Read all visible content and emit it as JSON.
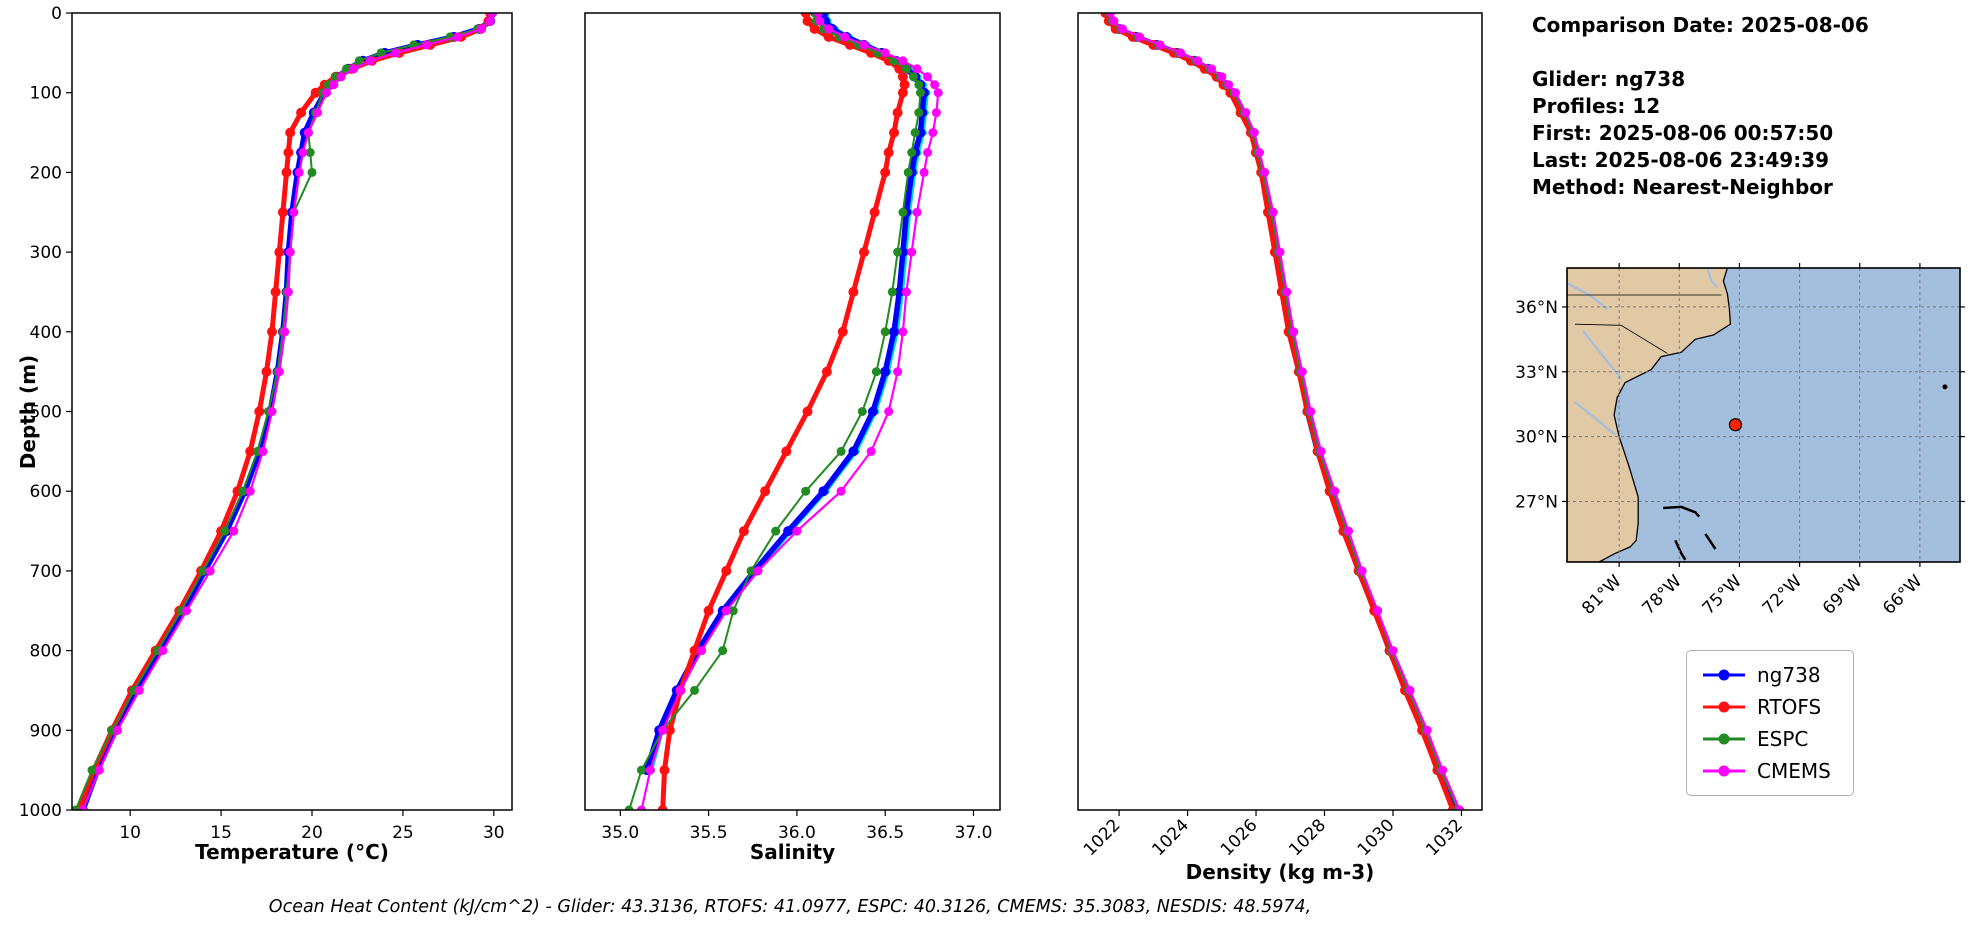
{
  "info_panel": {
    "lines": [
      "Comparison Date: 2025-08-06",
      "Glider: ng738",
      "Profiles: 12",
      "First: 2025-08-06 00:57:50",
      "Last: 2025-08-06 23:49:39",
      "Method: Nearest-Neighbor"
    ]
  },
  "ylabel": "Depth (m)",
  "footer": {
    "text": "Ocean Heat Content (kJ/cm^2) - Glider: 43.3136,  RTOFS: 41.0977,  ESPC: 40.3126,  CMEMS: 35.3083,  NESDIS: 48.5974,"
  },
  "legend": {
    "items": [
      {
        "label": "ng738",
        "color": "#0000ff"
      },
      {
        "label": "RTOFS",
        "color": "#ff1111"
      },
      {
        "label": "ESPC",
        "color": "#228b22"
      },
      {
        "label": "CMEMS",
        "color": "#ff00ff"
      }
    ]
  },
  "chart_data": [
    {
      "type": "line",
      "name": "temperature-profile",
      "xlabel": "Temperature (°C)",
      "ylabel": "Depth (m)",
      "xlim": [
        6.8,
        31.0
      ],
      "xticks": [
        10,
        15,
        20,
        25,
        30
      ],
      "xtick_labels": [
        "10",
        "15",
        "20",
        "25",
        "30"
      ],
      "xtick_rotation": 0,
      "ylim": [
        1000,
        0
      ],
      "yticks": [
        0,
        100,
        200,
        300,
        400,
        500,
        600,
        700,
        800,
        900,
        1000
      ],
      "depths": [
        0,
        10,
        20,
        30,
        40,
        50,
        60,
        70,
        80,
        90,
        100,
        125,
        150,
        175,
        200,
        250,
        300,
        350,
        400,
        450,
        500,
        550,
        600,
        650,
        700,
        750,
        800,
        850,
        900,
        950,
        1000
      ],
      "series": [
        {
          "name": "ng738 (all profiles)",
          "color": "#00dcdc",
          "width": 2.5,
          "marker_r": 3,
          "legend": false,
          "values": [
            30.0,
            29.9,
            29.4,
            28.1,
            26.2,
            24.4,
            23.1,
            22.2,
            21.6,
            21.1,
            20.8,
            20.2,
            19.7,
            19.5,
            19.3,
            19.0,
            18.8,
            18.7,
            18.5,
            18.2,
            17.8,
            17.2,
            16.4,
            15.4,
            14.2,
            13.0,
            11.7,
            10.4,
            9.3,
            8.3,
            7.5
          ]
        },
        {
          "name": "ng738",
          "color": "#0000ff",
          "width": 5.5,
          "marker_r": 5,
          "legend": true,
          "values": [
            29.9,
            29.8,
            29.2,
            27.8,
            25.8,
            24.0,
            22.8,
            22.0,
            21.4,
            21.0,
            20.7,
            20.1,
            19.6,
            19.4,
            19.2,
            18.9,
            18.7,
            18.6,
            18.4,
            18.1,
            17.7,
            17.1,
            16.3,
            15.3,
            14.1,
            12.9,
            11.6,
            10.3,
            9.2,
            8.2,
            7.4
          ]
        },
        {
          "name": "RTOFS",
          "color": "#ff1111",
          "width": 5,
          "marker_r": 5,
          "legend": true,
          "values": [
            29.8,
            29.7,
            29.3,
            28.2,
            26.5,
            24.8,
            23.3,
            22.2,
            21.3,
            20.7,
            20.2,
            19.4,
            18.8,
            18.7,
            18.6,
            18.4,
            18.2,
            18.0,
            17.8,
            17.5,
            17.1,
            16.6,
            15.9,
            15.0,
            13.9,
            12.7,
            11.4,
            10.1,
            9.0,
            8.0,
            7.2
          ]
        },
        {
          "name": "ESPC",
          "color": "#228b22",
          "width": 2,
          "marker_r": 4.5,
          "legend": true,
          "values": [
            29.9,
            29.8,
            29.1,
            27.6,
            25.6,
            23.8,
            22.6,
            21.9,
            21.3,
            20.9,
            20.6,
            20.2,
            19.8,
            19.9,
            20.0,
            19.0,
            18.8,
            18.6,
            18.4,
            18.1,
            17.6,
            17.0,
            16.2,
            15.2,
            14.0,
            12.8,
            11.5,
            10.2,
            9.0,
            7.9,
            7.0
          ]
        },
        {
          "name": "CMEMS",
          "color": "#ff00ff",
          "width": 2.2,
          "marker_r": 4.5,
          "legend": true,
          "values": [
            29.9,
            29.8,
            29.3,
            28.0,
            26.3,
            24.6,
            23.2,
            22.3,
            21.6,
            21.2,
            20.8,
            20.3,
            19.8,
            19.5,
            19.3,
            19.0,
            18.8,
            18.7,
            18.5,
            18.2,
            17.8,
            17.3,
            16.6,
            15.7,
            14.4,
            13.1,
            11.8,
            10.5,
            9.3,
            8.3,
            7.4
          ]
        }
      ]
    },
    {
      "type": "line",
      "name": "salinity-profile",
      "xlabel": "Salinity",
      "ylabel": "Depth (m)",
      "xlim": [
        34.8,
        37.15
      ],
      "xticks": [
        35.0,
        35.5,
        36.0,
        36.5,
        37.0
      ],
      "xtick_labels": [
        "35.0",
        "35.5",
        "36.0",
        "36.5",
        "37.0"
      ],
      "xtick_rotation": 0,
      "ylim": [
        1000,
        0
      ],
      "depths": [
        0,
        10,
        20,
        30,
        40,
        50,
        60,
        70,
        80,
        90,
        100,
        125,
        150,
        175,
        200,
        250,
        300,
        350,
        400,
        450,
        500,
        550,
        600,
        650,
        700,
        750,
        800,
        850,
        900,
        950,
        1000
      ],
      "series": [
        {
          "name": "ng738 (all profiles)",
          "color": "#00dcdc",
          "width": 2.5,
          "marker_r": 3,
          "legend": false,
          "values": [
            36.17,
            36.18,
            36.22,
            36.3,
            36.4,
            36.5,
            36.58,
            36.64,
            36.69,
            36.72,
            36.74,
            36.73,
            36.72,
            36.69,
            36.67,
            36.64,
            36.62,
            36.6,
            36.57,
            36.52,
            36.45,
            36.34,
            36.17,
            35.97,
            35.78,
            35.6,
            35.46,
            35.34,
            35.24,
            35.18,
            null
          ]
        },
        {
          "name": "ng738",
          "color": "#0000ff",
          "width": 5.5,
          "marker_r": 5,
          "legend": true,
          "values": [
            36.15,
            36.16,
            36.2,
            36.28,
            36.38,
            36.48,
            36.56,
            36.62,
            36.67,
            36.7,
            36.72,
            36.71,
            36.7,
            36.67,
            36.65,
            36.62,
            36.6,
            36.58,
            36.55,
            36.5,
            36.43,
            36.32,
            36.15,
            35.95,
            35.76,
            35.58,
            35.44,
            35.32,
            35.22,
            35.15,
            null
          ]
        },
        {
          "name": "RTOFS",
          "color": "#ff1111",
          "width": 5,
          "marker_r": 5,
          "legend": true,
          "values": [
            36.05,
            36.06,
            36.1,
            36.18,
            36.3,
            36.42,
            36.52,
            36.58,
            36.6,
            36.61,
            36.6,
            36.57,
            36.55,
            36.52,
            36.5,
            36.44,
            36.38,
            36.32,
            36.26,
            36.17,
            36.06,
            35.94,
            35.82,
            35.7,
            35.6,
            35.5,
            35.42,
            35.34,
            35.28,
            35.25,
            35.24
          ]
        },
        {
          "name": "ESPC",
          "color": "#228b22",
          "width": 2,
          "marker_r": 4.5,
          "legend": true,
          "values": [
            36.1,
            36.11,
            36.15,
            36.24,
            36.35,
            36.46,
            36.55,
            36.62,
            36.66,
            36.69,
            36.7,
            36.69,
            36.67,
            36.65,
            36.63,
            36.6,
            36.57,
            36.54,
            36.5,
            36.45,
            36.37,
            36.25,
            36.05,
            35.88,
            35.74,
            35.64,
            35.58,
            35.42,
            35.24,
            35.12,
            35.05
          ]
        },
        {
          "name": "CMEMS",
          "color": "#ff00ff",
          "width": 2.2,
          "marker_r": 4.5,
          "legend": true,
          "values": [
            36.12,
            36.13,
            36.18,
            36.27,
            36.38,
            36.5,
            36.6,
            36.68,
            36.74,
            36.78,
            36.8,
            36.79,
            36.77,
            36.74,
            36.72,
            36.68,
            36.65,
            36.62,
            36.6,
            36.57,
            36.52,
            36.42,
            36.25,
            36.0,
            35.78,
            35.6,
            35.46,
            35.34,
            35.24,
            35.17,
            35.12
          ]
        }
      ]
    },
    {
      "type": "line",
      "name": "density-profile",
      "xlabel": "Density (kg m-3)",
      "ylabel": "Depth (m)",
      "xlim": [
        1020.8,
        1032.6
      ],
      "xticks": [
        1022,
        1024,
        1026,
        1028,
        1030,
        1032
      ],
      "xtick_labels": [
        "1022",
        "1024",
        "1026",
        "1028",
        "1030",
        "1032"
      ],
      "xtick_rotation": 45,
      "ylim": [
        1000,
        0
      ],
      "depths": [
        0,
        10,
        20,
        30,
        40,
        50,
        60,
        70,
        80,
        90,
        100,
        125,
        150,
        175,
        200,
        250,
        300,
        350,
        400,
        450,
        500,
        550,
        600,
        650,
        700,
        750,
        800,
        850,
        900,
        950,
        1000
      ],
      "series": [
        {
          "name": "ng738 (all profiles)",
          "color": "#00dcdc",
          "width": 2.5,
          "marker_r": 3,
          "legend": false,
          "values": [
            1021.65,
            1021.75,
            1021.95,
            1022.45,
            1023.05,
            1023.65,
            1024.15,
            1024.55,
            1024.85,
            1025.05,
            1025.25,
            1025.55,
            1025.85,
            1025.95,
            1026.15,
            1026.35,
            1026.55,
            1026.75,
            1026.95,
            1027.25,
            1027.45,
            1027.75,
            1028.15,
            1028.55,
            1028.95,
            1029.45,
            1029.85,
            1030.35,
            1030.85,
            1031.25,
            null
          ]
        },
        {
          "name": "ng738",
          "color": "#0000ff",
          "width": 5.5,
          "marker_r": 5,
          "legend": true,
          "values": [
            1021.7,
            1021.8,
            1022.0,
            1022.5,
            1023.1,
            1023.7,
            1024.2,
            1024.6,
            1024.9,
            1025.1,
            1025.3,
            1025.6,
            1025.9,
            1026.0,
            1026.2,
            1026.4,
            1026.6,
            1026.8,
            1027.0,
            1027.3,
            1027.5,
            1027.8,
            1028.2,
            1028.6,
            1029.0,
            1029.5,
            1029.9,
            1030.4,
            1030.9,
            1031.3,
            1031.8
          ]
        },
        {
          "name": "RTOFS",
          "color": "#ff1111",
          "width": 5,
          "marker_r": 5,
          "legend": true,
          "values": [
            1021.6,
            1021.7,
            1021.9,
            1022.4,
            1023.0,
            1023.6,
            1024.1,
            1024.5,
            1024.85,
            1025.05,
            1025.25,
            1025.55,
            1025.85,
            1026.0,
            1026.15,
            1026.35,
            1026.55,
            1026.75,
            1026.95,
            1027.25,
            1027.5,
            1027.8,
            1028.15,
            1028.55,
            1029.0,
            1029.45,
            1029.9,
            1030.35,
            1030.85,
            1031.3,
            1031.75
          ]
        },
        {
          "name": "ESPC",
          "color": "#228b22",
          "width": 2,
          "marker_r": 4.5,
          "legend": true,
          "values": [
            1021.7,
            1021.8,
            1022.05,
            1022.55,
            1023.15,
            1023.75,
            1024.25,
            1024.65,
            1024.95,
            1025.15,
            1025.35,
            1025.65,
            1025.9,
            1026.05,
            1026.2,
            1026.45,
            1026.65,
            1026.85,
            1027.05,
            1027.3,
            1027.55,
            1027.85,
            1028.25,
            1028.65,
            1029.05,
            1029.55,
            1029.95,
            1030.45,
            1030.95,
            1031.4,
            1031.9
          ]
        },
        {
          "name": "CMEMS",
          "color": "#ff00ff",
          "width": 2.2,
          "marker_r": 4.5,
          "legend": true,
          "values": [
            1021.75,
            1021.85,
            1022.1,
            1022.6,
            1023.2,
            1023.8,
            1024.3,
            1024.7,
            1025.0,
            1025.2,
            1025.4,
            1025.7,
            1025.95,
            1026.1,
            1026.25,
            1026.5,
            1026.7,
            1026.9,
            1027.1,
            1027.35,
            1027.6,
            1027.9,
            1028.3,
            1028.7,
            1029.1,
            1029.55,
            1030.0,
            1030.5,
            1031.0,
            1031.45,
            1031.95
          ]
        }
      ]
    }
  ],
  "map": {
    "extent": {
      "lon": [
        -83.6,
        -64.0
      ],
      "lat": [
        24.2,
        37.8
      ]
    },
    "lat_ticks": [
      36,
      33,
      30,
      27
    ],
    "lat_labels": [
      "36°N",
      "33°N",
      "30°N",
      "27°N"
    ],
    "lon_ticks": [
      -81,
      -78,
      -75,
      -72,
      -69,
      -66
    ],
    "lon_labels": [
      "81°W",
      "78°W",
      "75°W",
      "72°W",
      "69°W",
      "66°W"
    ],
    "marker": {
      "lon": -75.2,
      "lat": 30.55,
      "color": "#ff2400"
    },
    "ocean_color": "#a4bfde",
    "land_color": "#e0c9a4"
  }
}
